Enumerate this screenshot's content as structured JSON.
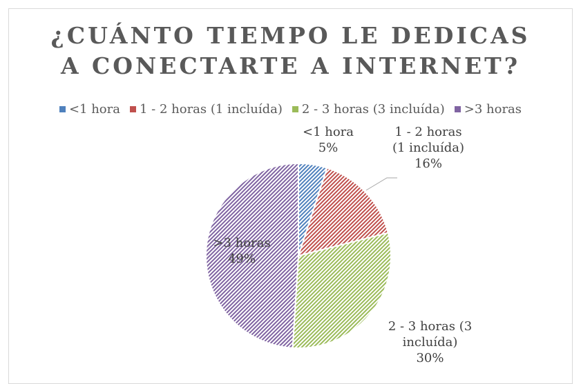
{
  "chart_data": {
    "type": "pie",
    "title": "¿CUÁNTO TIEMPO LE DEDICAS\nA CONECTARTE A INTERNET?",
    "categories": [
      "<1 hora",
      "1 - 2 horas (1 incluída)",
      "2 - 3 horas (3 incluída)",
      ">3 horas"
    ],
    "values": [
      5,
      16,
      30,
      49
    ],
    "value_labels": [
      "5%",
      "16%",
      "30%",
      "49%"
    ],
    "colors": [
      "#4f81bd",
      "#c0504d",
      "#9bbb59",
      "#8064a2"
    ],
    "legend": "top"
  }
}
